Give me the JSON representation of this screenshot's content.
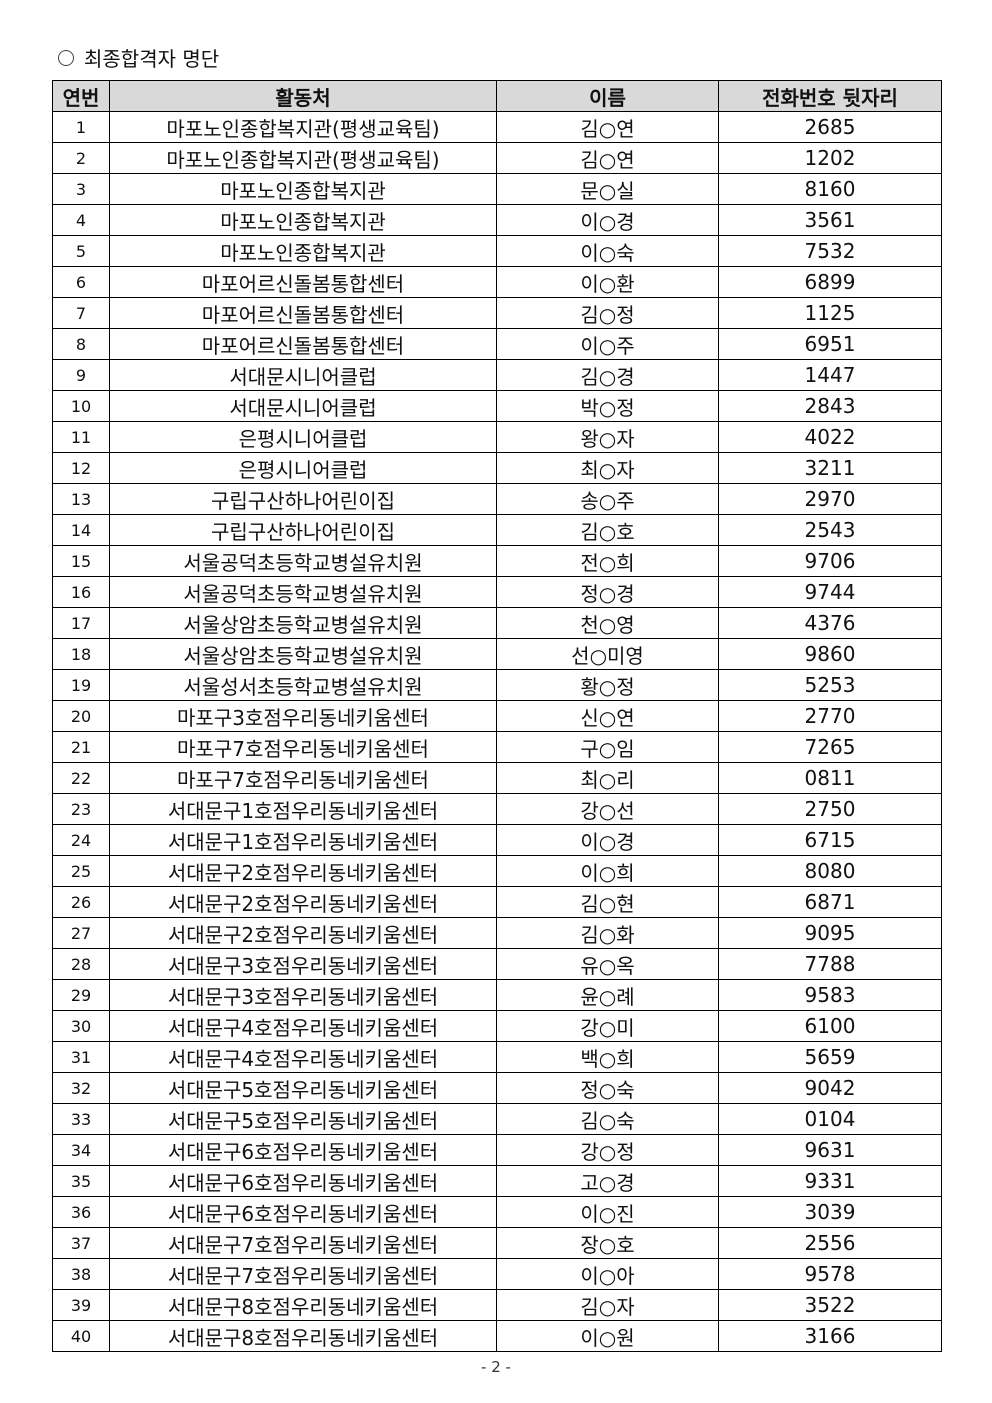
{
  "title": "최종합격자 명단",
  "headers": [
    "연번",
    "활동처",
    "이름",
    "전화번호 뒷자리"
  ],
  "rows": [
    [
      "1",
      "마포노인종합복지관(평생교육팀)",
      "김○연",
      "2685"
    ],
    [
      "2",
      "마포노인종합복지관(평생교육팀)",
      "김○연",
      "1202"
    ],
    [
      "3",
      "마포노인종합복지관",
      "문○실",
      "8160"
    ],
    [
      "4",
      "마포노인종합복지관",
      "이○경",
      "3561"
    ],
    [
      "5",
      "마포노인종합복지관",
      "이○숙",
      "7532"
    ],
    [
      "6",
      "마포어르신돌봄통합센터",
      "이○환",
      "6899"
    ],
    [
      "7",
      "마포어르신돌봄통합센터",
      "김○정",
      "1125"
    ],
    [
      "8",
      "마포어르신돌봄통합센터",
      "이○주",
      "6951"
    ],
    [
      "9",
      "서대문시니어클럽",
      "김○경",
      "1447"
    ],
    [
      "10",
      "서대문시니어클럽",
      "박○정",
      "2843"
    ],
    [
      "11",
      "은평시니어클럽",
      "왕○자",
      "4022"
    ],
    [
      "12",
      "은평시니어클럽",
      "최○자",
      "3211"
    ],
    [
      "13",
      "구립구산하나어린이집",
      "송○주",
      "2970"
    ],
    [
      "14",
      "구립구산하나어린이집",
      "김○호",
      "2543"
    ],
    [
      "15",
      "서울공덕초등학교병설유치원",
      "전○희",
      "9706"
    ],
    [
      "16",
      "서울공덕초등학교병설유치원",
      "정○경",
      "9744"
    ],
    [
      "17",
      "서울상암초등학교병설유치원",
      "천○영",
      "4376"
    ],
    [
      "18",
      "서울상암초등학교병설유치원",
      "선○미영",
      "9860"
    ],
    [
      "19",
      "서울성서초등학교병설유치원",
      "황○정",
      "5253"
    ],
    [
      "20",
      "마포구3호점우리동네키움센터",
      "신○연",
      "2770"
    ],
    [
      "21",
      "마포구7호점우리동네키움센터",
      "구○임",
      "7265"
    ],
    [
      "22",
      "마포구7호점우리동네키움센터",
      "최○리",
      "0811"
    ],
    [
      "23",
      "서대문구1호점우리동네키움센터",
      "강○선",
      "2750"
    ],
    [
      "24",
      "서대문구1호점우리동네키움센터",
      "이○경",
      "6715"
    ],
    [
      "25",
      "서대문구2호점우리동네키움센터",
      "이○희",
      "8080"
    ],
    [
      "26",
      "서대문구2호점우리동네키움센터",
      "김○현",
      "6871"
    ],
    [
      "27",
      "서대문구2호점우리동네키움센터",
      "김○화",
      "9095"
    ],
    [
      "28",
      "서대문구3호점우리동네키움센터",
      "유○옥",
      "7788"
    ],
    [
      "29",
      "서대문구3호점우리동네키움센터",
      "윤○례",
      "9583"
    ],
    [
      "30",
      "서대문구4호점우리동네키움센터",
      "강○미",
      "6100"
    ],
    [
      "31",
      "서대문구4호점우리동네키움센터",
      "백○희",
      "5659"
    ],
    [
      "32",
      "서대문구5호점우리동네키움센터",
      "정○숙",
      "9042"
    ],
    [
      "33",
      "서대문구5호점우리동네키움센터",
      "김○숙",
      "0104"
    ],
    [
      "34",
      "서대문구6호점우리동네키움센터",
      "강○정",
      "9631"
    ],
    [
      "35",
      "서대문구6호점우리동네키움센터",
      "고○경",
      "9331"
    ],
    [
      "36",
      "서대문구6호점우리동네키움센터",
      "이○진",
      "3039"
    ],
    [
      "37",
      "서대문구7호점우리동네키움센터",
      "장○호",
      "2556"
    ],
    [
      "38",
      "서대문구7호점우리동네키움센터",
      "이○아",
      "9578"
    ],
    [
      "39",
      "서대문구8호점우리동네키움센터",
      "김○자",
      "3522"
    ],
    [
      "40",
      "서대문구8호점우리동네키움센터",
      "이○원",
      "3166"
    ]
  ],
  "page_number": "- 2 -",
  "colors": {
    "header_bg": "#d9d9d9"
  }
}
